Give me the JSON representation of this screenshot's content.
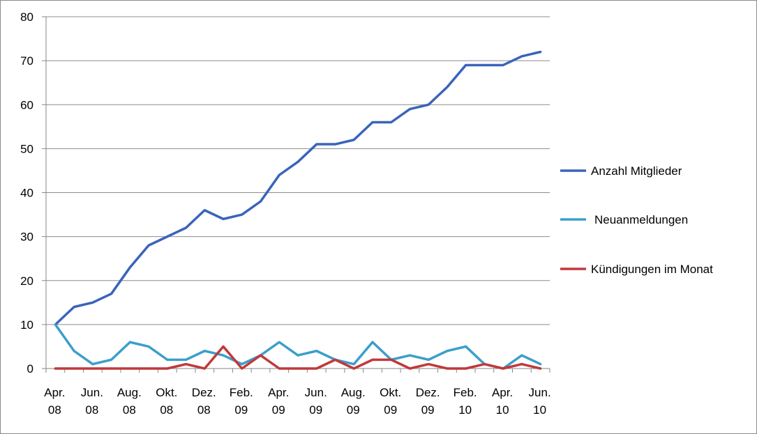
{
  "chart_data": {
    "type": "line",
    "x": [
      "2008-04",
      "2008-05",
      "2008-06",
      "2008-07",
      "2008-08",
      "2008-09",
      "2008-10",
      "2008-11",
      "2008-12",
      "2009-01",
      "2009-02",
      "2009-03",
      "2009-04",
      "2009-05",
      "2009-06",
      "2009-07",
      "2009-08",
      "2009-09",
      "2009-10",
      "2009-11",
      "2009-12",
      "2010-01",
      "2010-02",
      "2010-03",
      "2010-04",
      "2010-05",
      "2010-06"
    ],
    "x_tick_labels": [
      {
        "index": 0,
        "line1": "Apr.",
        "line2": "08"
      },
      {
        "index": 2,
        "line1": "Jun.",
        "line2": "08"
      },
      {
        "index": 4,
        "line1": "Aug.",
        "line2": "08"
      },
      {
        "index": 6,
        "line1": "Okt.",
        "line2": "08"
      },
      {
        "index": 8,
        "line1": "Dez.",
        "line2": "08"
      },
      {
        "index": 10,
        "line1": "Feb.",
        "line2": "09"
      },
      {
        "index": 12,
        "line1": "Apr.",
        "line2": "09"
      },
      {
        "index": 14,
        "line1": "Jun.",
        "line2": "09"
      },
      {
        "index": 16,
        "line1": "Aug.",
        "line2": "09"
      },
      {
        "index": 18,
        "line1": "Okt.",
        "line2": "09"
      },
      {
        "index": 20,
        "line1": "Dez.",
        "line2": "09"
      },
      {
        "index": 22,
        "line1": "Feb.",
        "line2": "10"
      },
      {
        "index": 24,
        "line1": "Apr.",
        "line2": "10"
      },
      {
        "index": 26,
        "line1": "Jun.",
        "line2": "10"
      }
    ],
    "y_ticks": [
      0,
      10,
      20,
      30,
      40,
      50,
      60,
      70,
      80
    ],
    "ylim": [
      0,
      80
    ],
    "grid": true,
    "legend_position": "right",
    "series": [
      {
        "name": "Anzahl Mitglieder",
        "color": "#3a64bb",
        "values": [
          10,
          14,
          15,
          17,
          23,
          28,
          30,
          32,
          36,
          34,
          35,
          38,
          44,
          47,
          51,
          51,
          52,
          56,
          56,
          59,
          60,
          64,
          69,
          69,
          69,
          71,
          72
        ]
      },
      {
        "name": "Neuanmeldungen",
        "color": "#3b9fcc",
        "values": [
          10,
          4,
          1,
          2,
          6,
          5,
          2,
          2,
          4,
          3,
          1,
          3,
          6,
          3,
          4,
          2,
          1,
          6,
          2,
          3,
          2,
          4,
          5,
          1,
          0,
          3,
          1
        ]
      },
      {
        "name": "Kündigungen im Monat",
        "color": "#c0393b",
        "values": [
          0,
          0,
          0,
          0,
          0,
          0,
          0,
          1,
          0,
          5,
          0,
          3,
          0,
          0,
          0,
          2,
          0,
          2,
          2,
          0,
          1,
          0,
          0,
          1,
          0,
          1,
          0
        ]
      }
    ]
  }
}
